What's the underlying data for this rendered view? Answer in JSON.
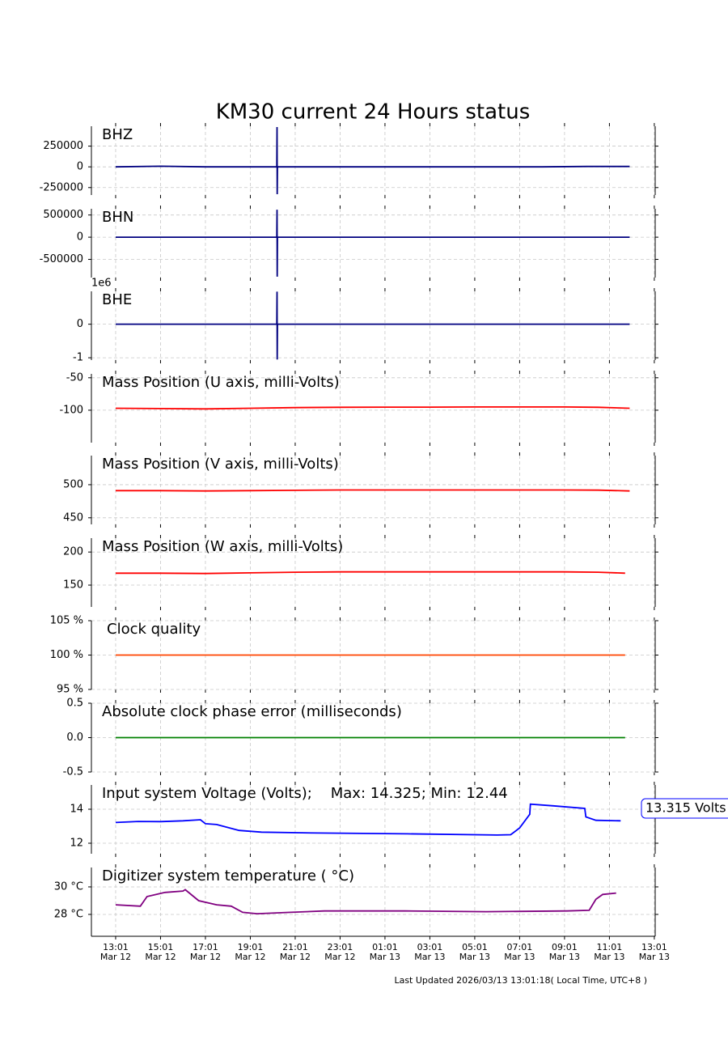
{
  "title": "KM30 current 24 Hours status",
  "footer": "Last Updated 2026/03/13 13:01:18( Local Time, UTC+8 )",
  "xaxis": {
    "xlim": [
      -1.08,
      24.04
    ],
    "xticks": [
      {
        "value": 0,
        "label": "13:01"
      },
      {
        "value": 2,
        "label": "15:01"
      },
      {
        "value": 4,
        "label": "17:01"
      },
      {
        "value": 6,
        "label": "19:01"
      },
      {
        "value": 8,
        "label": "21:01"
      },
      {
        "value": 10,
        "label": "23:01"
      },
      {
        "value": 12,
        "label": "01:01"
      },
      {
        "value": 14,
        "label": "03:01"
      },
      {
        "value": 16,
        "label": "05:01"
      },
      {
        "value": 18,
        "label": "07:01"
      },
      {
        "value": 20,
        "label": "09:01"
      },
      {
        "value": 22,
        "label": "11:01"
      },
      {
        "value": 24,
        "label": "13:01"
      }
    ],
    "xtick_dates": [
      "Mar 12",
      "Mar 12",
      "Mar 12",
      "Mar 12",
      "Mar 12",
      "Mar 12",
      "Mar 13",
      "Mar 13",
      "Mar 13",
      "Mar 13",
      "Mar 13",
      "Mar 13",
      "Mar 13"
    ]
  },
  "chart_data": [
    {
      "type": "line",
      "label": "BHZ",
      "color": "#000080",
      "ylim": [
        -340000,
        490000
      ],
      "yticks": [
        250000,
        0,
        -250000
      ],
      "x": [
        0,
        2,
        4,
        6,
        7.18,
        7.19,
        7.2,
        7.21,
        9,
        11,
        13,
        15,
        17,
        19,
        21,
        22.9
      ],
      "values": [
        0,
        8000,
        0,
        0,
        0,
        480000,
        -330000,
        0,
        0,
        0,
        0,
        0,
        0,
        0,
        5000,
        5000
      ]
    },
    {
      "type": "line",
      "label": "BHN",
      "color": "#000080",
      "ylim": [
        -910000,
        640000
      ],
      "yticks": [
        500000,
        0,
        -500000
      ],
      "x": [
        0,
        2,
        4,
        6,
        7.18,
        7.19,
        7.2,
        7.21,
        9,
        11,
        13,
        15,
        17,
        19,
        21,
        22.9
      ],
      "values": [
        0,
        0,
        0,
        0,
        0,
        620000,
        -890000,
        0,
        0,
        0,
        0,
        0,
        0,
        0,
        0,
        0
      ]
    },
    {
      "type": "line",
      "label": "BHE",
      "color": "#000080",
      "ylim": [
        -1.07,
        0.98
      ],
      "yticks": [
        0,
        -1
      ],
      "offset_label": "1e6",
      "x": [
        0,
        2,
        4,
        6,
        7.18,
        7.19,
        7.2,
        7.21,
        9,
        11,
        13,
        15,
        17,
        19,
        21,
        22.9
      ],
      "values": [
        0,
        0,
        0,
        0,
        0,
        0.97,
        -1.05,
        0,
        0,
        0,
        0,
        0,
        0,
        0,
        0,
        0
      ]
    },
    {
      "type": "line",
      "label": "Mass Position (U axis, milli-Volts)",
      "color": "#ff0000",
      "ylim": [
        -150,
        -44
      ],
      "yticks": [
        -50,
        -100
      ],
      "x": [
        0,
        2,
        4,
        6,
        8,
        10,
        12,
        14,
        16,
        18,
        20,
        21.5,
        22.9
      ],
      "values": [
        -97,
        -97.5,
        -98,
        -97,
        -96,
        -95.5,
        -95.3,
        -95.2,
        -95,
        -95,
        -95,
        -95.5,
        -97
      ]
    },
    {
      "type": "line",
      "label": "Mass Position (V axis, milli-Volts)",
      "color": "#ff0000",
      "ylim": [
        440,
        544
      ],
      "yticks": [
        500,
        450
      ],
      "x": [
        0,
        2,
        4,
        6,
        8,
        10,
        12,
        14,
        16,
        18,
        20,
        21.5,
        22.9
      ],
      "values": [
        491,
        491,
        490.5,
        491,
        491.5,
        492,
        492,
        492,
        492,
        492,
        492,
        491.8,
        490.5
      ]
    },
    {
      "type": "line",
      "label": "Mass Position (W axis, milli-Volts)",
      "color": "#ff0000",
      "ylim": [
        117,
        221
      ],
      "yticks": [
        200,
        150
      ],
      "x": [
        0,
        2,
        4,
        6,
        8,
        10,
        12,
        14,
        16,
        18,
        20,
        21.5,
        22.7
      ],
      "values": [
        168,
        168,
        167.5,
        168.5,
        169.5,
        170,
        170,
        170,
        170,
        170,
        170,
        169.5,
        168
      ]
    },
    {
      "type": "line",
      "label": "Clock quality",
      "color": "#ff4500",
      "ylim": [
        95,
        105
      ],
      "yticks": [
        {
          "value": 105,
          "label": "105 %"
        },
        {
          "value": 100,
          "label": "100 %"
        },
        {
          "value": 95,
          "label": "95 %"
        }
      ],
      "x": [
        0,
        22.7
      ],
      "values": [
        100,
        100
      ]
    },
    {
      "type": "line",
      "label": "Absolute clock phase error (milliseconds)",
      "color": "#008000",
      "ylim": [
        -0.5,
        0.5
      ],
      "yticks": [
        0.5,
        {
          "value": 0,
          "label": "0.0"
        },
        -0.5
      ],
      "x": [
        0,
        22.7
      ],
      "values": [
        0,
        0
      ]
    },
    {
      "type": "line",
      "label": "Input system Voltage (Volts);    Max: 14.325; Min: 12.44",
      "color": "#0000ff",
      "ylim": [
        11.38,
        15.43
      ],
      "yticks": [
        14,
        12
      ],
      "annotation": "13.315 Volts",
      "x": [
        0,
        1,
        2,
        3,
        3.78,
        4.0,
        4.5,
        5.5,
        6.5,
        9,
        13,
        17,
        17.6,
        18.0,
        18.45,
        18.48,
        19.5,
        20.9,
        20.95,
        21.4,
        22.5
      ],
      "values": [
        13.22,
        13.28,
        13.27,
        13.32,
        13.38,
        13.15,
        13.1,
        12.75,
        12.65,
        12.6,
        12.55,
        12.48,
        12.5,
        12.9,
        13.7,
        14.3,
        14.2,
        14.05,
        13.55,
        13.35,
        13.32
      ]
    },
    {
      "type": "line",
      "label": "Digitizer system temperature ( °C)",
      "color": "#800080",
      "ylim": [
        26.41,
        31.41
      ],
      "yticks": [
        {
          "value": 30,
          "label": "30 °C"
        },
        {
          "value": 28,
          "label": "28 °C"
        }
      ],
      "x": [
        0,
        1.1,
        1.4,
        2.2,
        3.0,
        3.1,
        3.7,
        4.5,
        5.15,
        5.66,
        6.3,
        7.8,
        9.3,
        12.9,
        16.5,
        20.1,
        21.1,
        21.4,
        21.7,
        22.3
      ],
      "values": [
        28.7,
        28.6,
        29.3,
        29.6,
        29.7,
        29.8,
        29.0,
        28.7,
        28.6,
        28.15,
        28.05,
        28.15,
        28.25,
        28.25,
        28.2,
        28.25,
        28.3,
        29.1,
        29.45,
        29.55
      ]
    }
  ]
}
